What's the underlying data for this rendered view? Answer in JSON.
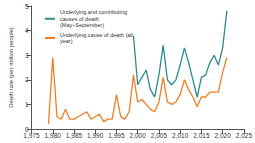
{
  "chart_data": {
    "type": "line",
    "y_label": "Death rate (per million people)",
    "x": [
      1979,
      1980,
      1981,
      1982,
      1983,
      1984,
      1985,
      1986,
      1987,
      1988,
      1989,
      1990,
      1991,
      1992,
      1993,
      1994,
      1995,
      1996,
      1997,
      1998,
      1999,
      2000,
      2001,
      2002,
      2003,
      2004,
      2005,
      2006,
      2007,
      2008,
      2009,
      2010,
      2011,
      2012,
      2013,
      2014,
      2015,
      2016,
      2017,
      2018,
      2019,
      2020,
      2021
    ],
    "series": [
      {
        "name": "Underlying and contributing causes of death (May–September)",
        "color": "#2a8a8e",
        "values": [
          null,
          null,
          null,
          null,
          null,
          null,
          null,
          null,
          null,
          null,
          null,
          null,
          null,
          null,
          null,
          null,
          null,
          null,
          null,
          null,
          3.8,
          1.8,
          2.1,
          2.4,
          1.6,
          1.3,
          2.2,
          3.4,
          2.0,
          1.8,
          2.0,
          2.6,
          3.3,
          2.7,
          2.0,
          1.3,
          2.1,
          2.2,
          2.7,
          3.0,
          2.6,
          3.3,
          4.8
        ]
      },
      {
        "name": "Underlying cause of death (all year)",
        "color": "#f07d23",
        "values": [
          0.2,
          2.9,
          0.5,
          0.4,
          0.8,
          0.4,
          0.4,
          0.5,
          0.6,
          0.7,
          0.4,
          0.5,
          0.6,
          0.3,
          0.4,
          0.4,
          1.4,
          0.5,
          0.4,
          0.7,
          2.2,
          1.1,
          1.2,
          1.0,
          0.8,
          0.7,
          1.1,
          2.1,
          1.1,
          1.0,
          1.1,
          1.4,
          2.0,
          1.6,
          1.3,
          0.9,
          1.3,
          1.3,
          1.5,
          1.5,
          1.5,
          2.3,
          2.9
        ]
      }
    ],
    "xlim": [
      1975,
      2025
    ],
    "xticks": [
      1975,
      1980,
      1985,
      1990,
      1995,
      2000,
      2005,
      2010,
      2015,
      2020,
      2025
    ],
    "ylim": [
      0,
      5
    ],
    "yticks": [
      0,
      1,
      2,
      3,
      4,
      5
    ],
    "grid": false,
    "legend": "top-left"
  }
}
